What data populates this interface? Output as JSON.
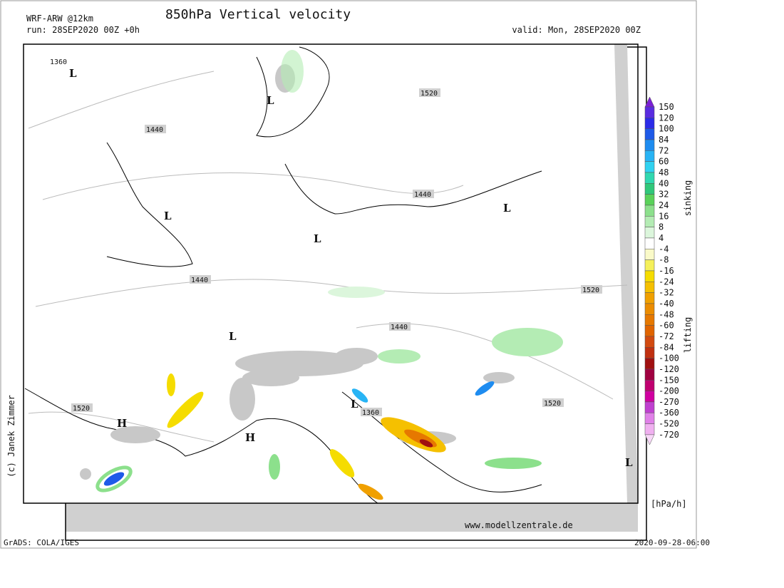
{
  "header": {
    "model": "WRF-ARW @12km",
    "title": "850hPa Vertical velocity",
    "run": "run: 28SEP2020 00Z +0h",
    "valid": "valid: Mon, 28SEP2020 00Z"
  },
  "colorbar": {
    "levels": [
      "150",
      "120",
      "100",
      "84",
      "72",
      "60",
      "48",
      "40",
      "32",
      "24",
      "16",
      "8",
      "4",
      "-4",
      "-8",
      "-16",
      "-24",
      "-32",
      "-40",
      "-48",
      "-60",
      "-72",
      "-84",
      "-100",
      "-120",
      "-150",
      "-200",
      "-270",
      "-360",
      "-520",
      "-720"
    ],
    "colors": [
      "#7a1fd6",
      "#5a2ce0",
      "#2b2be8",
      "#1e5ae8",
      "#1e8cf0",
      "#28b4f5",
      "#30d2f0",
      "#30d8b0",
      "#30c87a",
      "#5ad25a",
      "#8ce08c",
      "#b4ecb4",
      "#dcf6dc",
      "#ffffff",
      "#fafac8",
      "#f5f05a",
      "#f5dc00",
      "#f5c000",
      "#f0a000",
      "#eb8c00",
      "#e67800",
      "#e06400",
      "#d24a10",
      "#c03010",
      "#a01010",
      "#a00040",
      "#c00070",
      "#d000a0",
      "#c040d0",
      "#e080e8",
      "#f0b0f0",
      "#f8d8f8"
    ],
    "upper_label": "sinking",
    "lower_label": "lifting",
    "unit": "[hPa/h]"
  },
  "map": {
    "labels": [
      "1360",
      "L",
      "L",
      "1520",
      "1440",
      "1440",
      "L",
      "L",
      "L",
      "1440",
      "1520",
      "1440",
      "L",
      "1520",
      "L",
      "1360",
      "1520",
      "H",
      "H",
      "L"
    ]
  },
  "footer": {
    "copyright": "(c) Janek Zimmer",
    "website": "www.modellzentrale.de",
    "software": "GrADS: COLA/IGES",
    "timestamp": "2020-09-28-06:00"
  }
}
